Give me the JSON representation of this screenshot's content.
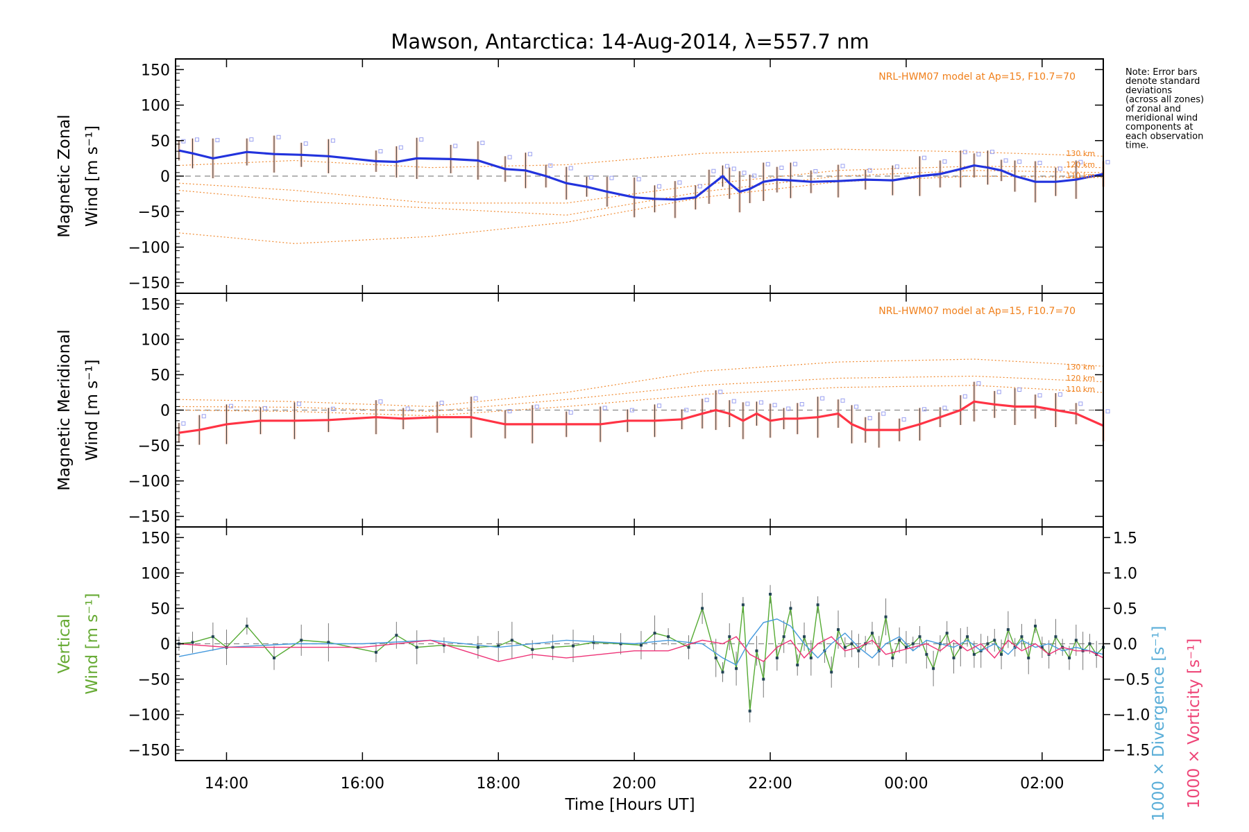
{
  "chart_data": {
    "type": "line",
    "title": "Mawson, Antarctica: 14-Aug-2014, λ=557.7 nm",
    "xlabel": "Time [Hours UT]",
    "x_ticks": [
      "14:00",
      "16:00",
      "18:00",
      "20:00",
      "22:00",
      "00:00",
      "02:00"
    ],
    "x_tick_hours": [
      14,
      16,
      18,
      20,
      22,
      24,
      26
    ],
    "xlim_hours": [
      13.25,
      26.9
    ],
    "note": [
      "Note: Error bars",
      "denote standard",
      "deviations",
      "(across all zones)",
      "of zonal and",
      "meridional wind",
      "components at",
      "each observation",
      "time."
    ],
    "panels": [
      {
        "id": "zonal",
        "ylabel": [
          "Magnetic Zonal",
          "Wind [m s⁻¹]"
        ],
        "ylim": [
          -165,
          165
        ],
        "yticks": [
          150,
          100,
          50,
          0,
          -50,
          -100,
          -150
        ],
        "model_label": "NRL-HWM07 model at Ap=15, F10.7=70",
        "altitude_labels": [
          "130 km",
          "120 km",
          "110 km"
        ],
        "mean_series": {
          "name": "zonal wind",
          "color": "#2233dd",
          "x": [
            13.3,
            13.5,
            13.8,
            14.3,
            14.7,
            15.1,
            15.5,
            16.2,
            16.5,
            16.8,
            17.3,
            17.7,
            18.1,
            18.4,
            18.7,
            19.0,
            19.3,
            19.6,
            20.0,
            20.3,
            20.6,
            20.9,
            21.1,
            21.3,
            21.4,
            21.55,
            21.7,
            21.9,
            22.1,
            22.3,
            22.6,
            23.0,
            23.4,
            23.8,
            24.2,
            24.5,
            24.8,
            25.0,
            25.2,
            25.4,
            25.6,
            25.9,
            26.2,
            26.5,
            26.9
          ],
          "y": [
            36,
            32,
            25,
            34,
            31,
            30,
            28,
            21,
            20,
            25,
            24,
            22,
            10,
            8,
            0,
            -10,
            -15,
            -22,
            -30,
            -32,
            -33,
            -30,
            -15,
            0,
            -10,
            -22,
            -18,
            -8,
            -5,
            -6,
            -8,
            -7,
            -5,
            -6,
            0,
            3,
            10,
            15,
            12,
            8,
            0,
            -8,
            -8,
            -5,
            3
          ]
        },
        "model_curves": [
          {
            "name": "130 km",
            "x": [
              13.3,
              15,
              17,
              19,
              21,
              23,
              25,
              26.9
            ],
            "y": [
              15,
              22,
              12,
              16,
              32,
              38,
              34,
              28
            ]
          },
          {
            "name": "120 km",
            "x": [
              13.3,
              15,
              17,
              19,
              21,
              23,
              25,
              26.9
            ],
            "y": [
              -10,
              -20,
              -38,
              -38,
              -12,
              8,
              14,
              12
            ]
          },
          {
            "name": "110 km",
            "x": [
              13.3,
              15,
              17,
              19,
              21,
              23,
              25,
              26.9
            ],
            "y": [
              -20,
              -35,
              -45,
              -55,
              -22,
              0,
              8,
              5
            ]
          },
          {
            "name": "model",
            "x": [
              13.3,
              15,
              17,
              19,
              21,
              23,
              25,
              26.9
            ],
            "y": [
              -80,
              -95,
              -85,
              -65,
              -30,
              -8,
              0,
              -2
            ]
          }
        ]
      },
      {
        "id": "meridional",
        "ylabel": [
          "Magnetic Meridional",
          "Wind [m s⁻¹]"
        ],
        "ylim": [
          -165,
          165
        ],
        "yticks": [
          150,
          100,
          50,
          0,
          -50,
          -100,
          -150
        ],
        "model_label": "NRL-HWM07 model at Ap=15, F10.7=70",
        "altitude_labels": [
          "130 km",
          "120 km",
          "110 km"
        ],
        "mean_series": {
          "name": "meridional wind",
          "color": "#ff3344",
          "x": [
            13.3,
            13.6,
            14.0,
            14.5,
            15.0,
            15.5,
            16.2,
            16.6,
            17.1,
            17.6,
            18.1,
            18.5,
            19.0,
            19.5,
            19.9,
            20.3,
            20.7,
            21.0,
            21.2,
            21.4,
            21.6,
            21.8,
            22.0,
            22.2,
            22.4,
            22.7,
            23.0,
            23.2,
            23.4,
            23.6,
            23.9,
            24.2,
            24.5,
            24.8,
            25.0,
            25.3,
            25.6,
            25.9,
            26.2,
            26.5,
            26.9
          ],
          "y": [
            -32,
            -28,
            -20,
            -15,
            -15,
            -14,
            -10,
            -12,
            -10,
            -10,
            -20,
            -20,
            -20,
            -20,
            -15,
            -15,
            -13,
            -5,
            0,
            -5,
            -15,
            -5,
            -15,
            -12,
            -12,
            -10,
            -5,
            -20,
            -28,
            -28,
            -28,
            -20,
            -10,
            0,
            12,
            8,
            5,
            5,
            0,
            -5,
            -22
          ]
        },
        "model_curves": [
          {
            "name": "130 km",
            "x": [
              13.3,
              15,
              17,
              19,
              21,
              23,
              25,
              26.9
            ],
            "y": [
              15,
              12,
              5,
              25,
              55,
              68,
              72,
              62
            ]
          },
          {
            "name": "120 km",
            "x": [
              13.3,
              15,
              17,
              19,
              21,
              23,
              25,
              26.9
            ],
            "y": [
              5,
              4,
              -2,
              15,
              35,
              45,
              48,
              40
            ]
          },
          {
            "name": "110 km",
            "x": [
              13.3,
              15,
              17,
              19,
              21,
              23,
              25,
              26.9
            ],
            "y": [
              0,
              -2,
              -8,
              5,
              22,
              32,
              35,
              25
            ]
          }
        ]
      },
      {
        "id": "vertical",
        "ylabel": [
          "Vertical",
          "Wind [m s⁻¹]"
        ],
        "ylim": [
          -165,
          165
        ],
        "yticks": [
          150,
          100,
          50,
          0,
          -50,
          -100,
          -150
        ],
        "right_ylabel_div": "1000 × Divergence [s⁻¹]",
        "right_ylabel_vort": "1000 × Vorticity [s⁻¹]",
        "right_ylim": [
          -1.65,
          1.65
        ],
        "right_yticks": [
          1.5,
          1.0,
          0.5,
          0.0,
          -0.5,
          -1.0,
          -1.5
        ],
        "right_ytick_labels": [
          "1.5",
          "1.0",
          "0.5",
          "0.0",
          "−0.5",
          "−1.0",
          "−1.5"
        ],
        "series": [
          {
            "name": "Vertical Wind",
            "color": "#55aa33",
            "x": [
              13.3,
              13.5,
              13.8,
              14.0,
              14.3,
              14.7,
              15.1,
              15.5,
              16.2,
              16.5,
              16.8,
              17.2,
              17.7,
              18.0,
              18.2,
              18.5,
              18.8,
              19.1,
              19.4,
              19.8,
              20.1,
              20.3,
              20.5,
              20.8,
              21.0,
              21.2,
              21.3,
              21.4,
              21.5,
              21.6,
              21.7,
              21.8,
              21.9,
              22.0,
              22.1,
              22.2,
              22.3,
              22.4,
              22.5,
              22.6,
              22.7,
              22.8,
              22.9,
              23.0,
              23.1,
              23.2,
              23.3,
              23.4,
              23.5,
              23.6,
              23.7,
              23.8,
              23.9,
              24.0,
              24.1,
              24.2,
              24.3,
              24.4,
              24.5,
              24.6,
              24.7,
              24.8,
              24.9,
              25.0,
              25.1,
              25.2,
              25.3,
              25.4,
              25.5,
              25.6,
              25.7,
              25.8,
              25.9,
              26.0,
              26.1,
              26.2,
              26.3,
              26.4,
              26.5,
              26.6,
              26.7,
              26.8,
              26.9
            ],
            "y": [
              0,
              2,
              10,
              -5,
              25,
              -20,
              5,
              2,
              -12,
              12,
              -5,
              -2,
              -5,
              -3,
              5,
              -8,
              -5,
              -3,
              2,
              0,
              -2,
              15,
              10,
              -5,
              50,
              -20,
              -40,
              10,
              -35,
              55,
              -95,
              -10,
              -50,
              70,
              -20,
              10,
              50,
              -30,
              10,
              -20,
              55,
              -10,
              -40,
              20,
              -5,
              0,
              -10,
              0,
              15,
              -10,
              38,
              -20,
              5,
              -5,
              0,
              10,
              -15,
              -35,
              0,
              15,
              -20,
              -5,
              10,
              -15,
              -10,
              0,
              5,
              -15,
              20,
              -5,
              10,
              -20,
              25,
              -5,
              -15,
              10,
              -5,
              -20,
              5,
              -10,
              0,
              -15,
              -5
            ]
          },
          {
            "name": "1000 × Divergence",
            "color": "#4499dd",
            "x": [
              13.3,
              14,
              15,
              16,
              17,
              18,
              19,
              20,
              20.5,
              21,
              21.3,
              21.5,
              21.7,
              21.9,
              22.1,
              22.3,
              22.5,
              22.7,
              22.9,
              23.1,
              23.3,
              23.5,
              23.7,
              23.9,
              24.1,
              24.3,
              24.5,
              24.7,
              24.9,
              25.1,
              25.3,
              25.5,
              25.7,
              25.9,
              26.1,
              26.3,
              26.5,
              26.7,
              26.9
            ],
            "y": [
              -0.18,
              -0.05,
              0.0,
              0.0,
              0.05,
              -0.05,
              0.05,
              0.0,
              0.05,
              0.0,
              -0.2,
              -0.3,
              0.05,
              0.3,
              0.35,
              0.25,
              0.0,
              -0.2,
              0.0,
              0.15,
              -0.05,
              -0.2,
              0.0,
              0.1,
              -0.1,
              0.05,
              0.0,
              -0.05,
              0.05,
              -0.1,
              0.0,
              -0.15,
              0.05,
              -0.05,
              0.0,
              -0.1,
              -0.05,
              -0.1,
              -0.15
            ]
          },
          {
            "name": "1000 × Vorticity",
            "color": "#ee3377",
            "x": [
              13.3,
              14,
              15,
              16,
              17,
              17.5,
              18,
              18.5,
              19,
              19.5,
              20,
              20.5,
              21,
              21.3,
              21.5,
              21.7,
              21.9,
              22.1,
              22.3,
              22.5,
              22.7,
              22.9,
              23.1,
              23.3,
              23.5,
              23.7,
              23.9,
              24.1,
              24.3,
              24.5,
              24.7,
              24.9,
              25.1,
              25.3,
              25.5,
              25.7,
              25.9,
              26.1,
              26.3,
              26.5,
              26.7,
              26.9
            ],
            "y": [
              0.0,
              -0.05,
              -0.05,
              -0.05,
              0.05,
              -0.1,
              -0.25,
              -0.15,
              -0.2,
              -0.15,
              -0.1,
              -0.1,
              0.05,
              0.0,
              0.1,
              -0.15,
              -0.25,
              -0.05,
              0.05,
              -0.2,
              0.0,
              0.1,
              -0.1,
              -0.05,
              0.05,
              -0.15,
              -0.1,
              -0.05,
              0.0,
              -0.1,
              0.05,
              -0.1,
              0.0,
              -0.2,
              0.05,
              -0.1,
              0.0,
              -0.15,
              -0.05,
              -0.1,
              -0.1,
              -0.2
            ]
          }
        ]
      }
    ]
  }
}
